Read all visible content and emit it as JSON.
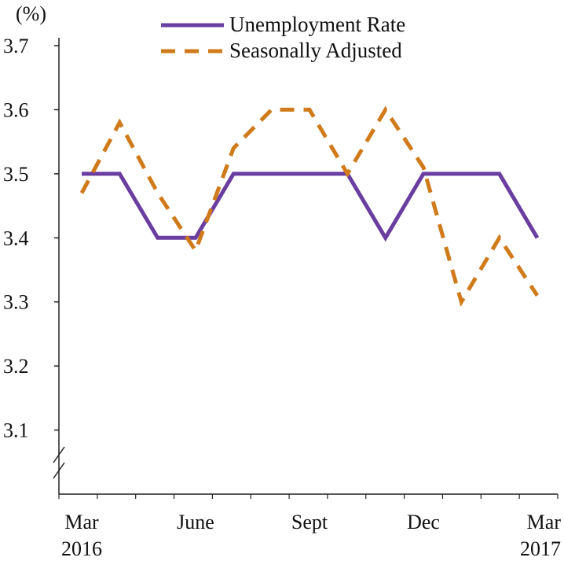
{
  "chart_data": {
    "type": "line",
    "unit_label": "(%)",
    "x": [
      "Mar 2016",
      "Apr 2016",
      "May 2016",
      "Jun 2016",
      "Jul 2016",
      "Aug 2016",
      "Sep 2016",
      "Oct 2016",
      "Nov 2016",
      "Dec 2016",
      "Jan 2017",
      "Feb 2017",
      "Mar 2017"
    ],
    "x_tick_labels": [
      {
        "index": 0,
        "lines": [
          "Mar",
          "2016"
        ]
      },
      {
        "index": 3,
        "lines": [
          "June",
          ""
        ]
      },
      {
        "index": 6,
        "lines": [
          "Sept",
          ""
        ]
      },
      {
        "index": 9,
        "lines": [
          "Dec",
          ""
        ]
      },
      {
        "index": 12,
        "lines": [
          "Mar",
          "2017"
        ]
      }
    ],
    "ylim": [
      3.0,
      3.7
    ],
    "y_ticks": [
      "3.1",
      "3.2",
      "3.3",
      "3.4",
      "3.5",
      "3.6",
      "3.7"
    ],
    "axis_break": true,
    "grid": false,
    "legend_position": "top-center",
    "series": [
      {
        "name": "Unemployment Rate",
        "style": "solid",
        "color": "#6a3ea1",
        "values": [
          3.5,
          3.5,
          3.4,
          3.4,
          3.5,
          3.5,
          3.5,
          3.5,
          3.4,
          3.5,
          3.5,
          3.5,
          3.4
        ]
      },
      {
        "name": "Seasonally Adjusted",
        "style": "dashed",
        "color": "#d07a1a",
        "values": [
          3.47,
          3.58,
          3.47,
          3.38,
          3.54,
          3.6,
          3.6,
          3.5,
          3.6,
          3.51,
          3.3,
          3.4,
          3.31
        ]
      }
    ]
  }
}
